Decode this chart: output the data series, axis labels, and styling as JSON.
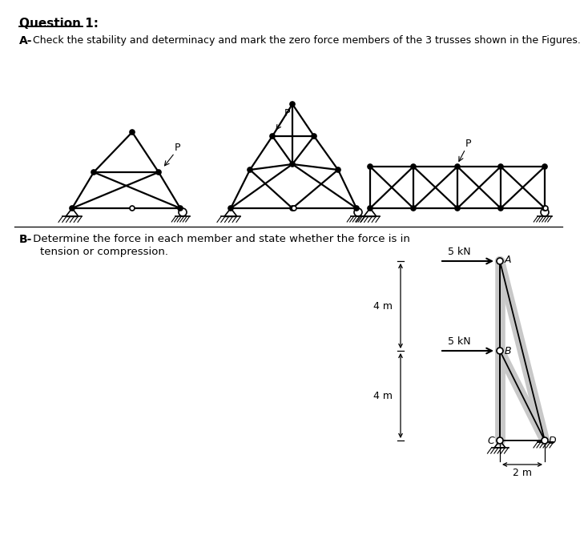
{
  "title": "Question 1:",
  "part_a_label": "A-",
  "part_a_text": " Check the stability and determinacy and mark the zero force members of the 3 trusses shown in the Figures.",
  "part_b_label": "B-",
  "part_b_text1": " Determine the force in each member and state whether the force is in",
  "part_b_text2": "tension or compression.",
  "background_color": "#ffffff",
  "black": "#000000",
  "gray_member": "#c8c8c8",
  "node_labels": [
    "A",
    "B",
    "C",
    "D"
  ],
  "forces": [
    "5 kN",
    "5 kN"
  ],
  "dims": [
    "4 m",
    "4 m",
    "2 m"
  ]
}
